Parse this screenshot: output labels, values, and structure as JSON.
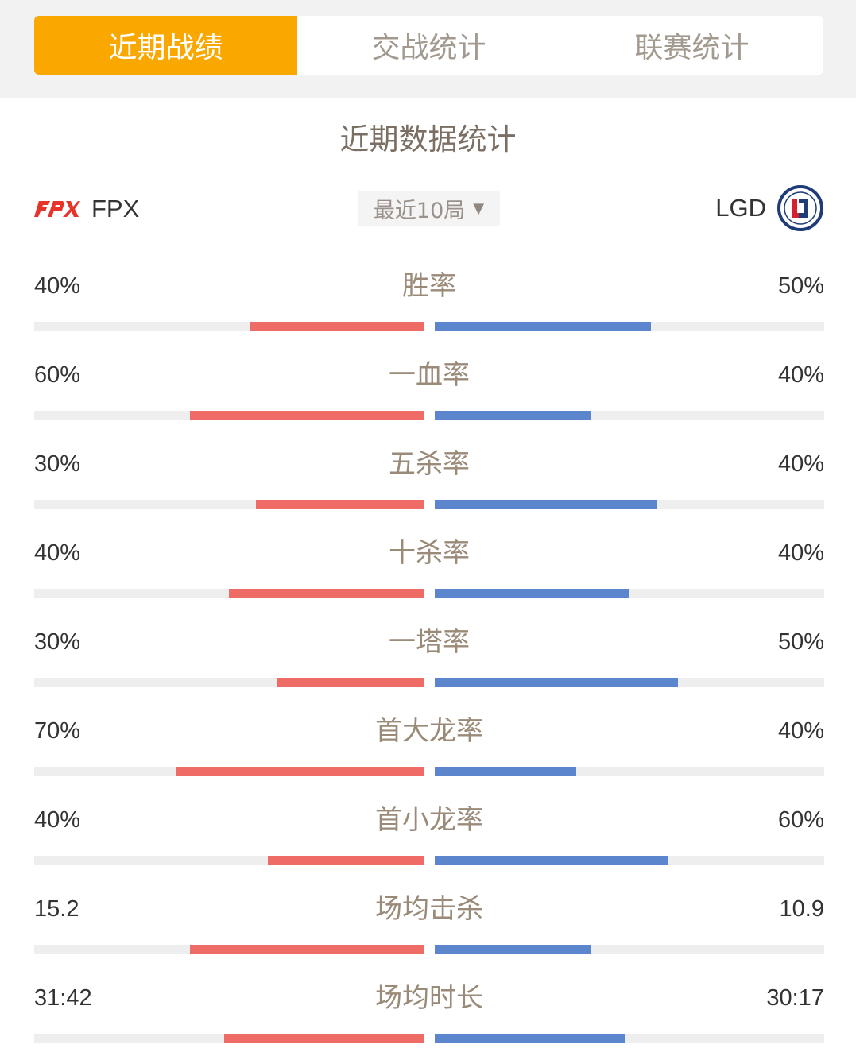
{
  "tabs": [
    {
      "label": "近期战绩",
      "active": true
    },
    {
      "label": "交战统计",
      "active": false
    },
    {
      "label": "联赛统计",
      "active": false
    }
  ],
  "section_title": "近期数据统计",
  "team_left": {
    "name": "FPX",
    "logo": "fpx-logo",
    "bar_color": "#ef6b66"
  },
  "team_right": {
    "name": "LGD",
    "logo": "lgd-logo",
    "bar_color": "#5b86cd"
  },
  "range_select": {
    "label": "最近10局",
    "icon": "caret-down-icon"
  },
  "colors": {
    "accent": "#faa800",
    "fpx": "#ef6b66",
    "lgd": "#5b86cd",
    "track": "#eeeeee"
  },
  "stats": [
    {
      "label": "胜率",
      "left": "40%",
      "right": "50%",
      "left_fill": 0.445,
      "right_fill": 0.555
    },
    {
      "label": "一血率",
      "left": "60%",
      "right": "40%",
      "left_fill": 0.6,
      "right_fill": 0.4
    },
    {
      "label": "五杀率",
      "left": "30%",
      "right": "40%",
      "left_fill": 0.43,
      "right_fill": 0.57
    },
    {
      "label": "十杀率",
      "left": "40%",
      "right": "40%",
      "left_fill": 0.5,
      "right_fill": 0.5
    },
    {
      "label": "一塔率",
      "left": "30%",
      "right": "50%",
      "left_fill": 0.375,
      "right_fill": 0.625
    },
    {
      "label": "首大龙率",
      "left": "70%",
      "right": "40%",
      "left_fill": 0.636,
      "right_fill": 0.364
    },
    {
      "label": "首小龙率",
      "left": "40%",
      "right": "60%",
      "left_fill": 0.4,
      "right_fill": 0.6
    },
    {
      "label": "场均击杀",
      "left": "15.2",
      "right": "10.9",
      "left_fill": 0.6,
      "right_fill": 0.4
    },
    {
      "label": "场均时长",
      "left": "31:42",
      "right": "30:17",
      "left_fill": 0.512,
      "right_fill": 0.488
    }
  ]
}
